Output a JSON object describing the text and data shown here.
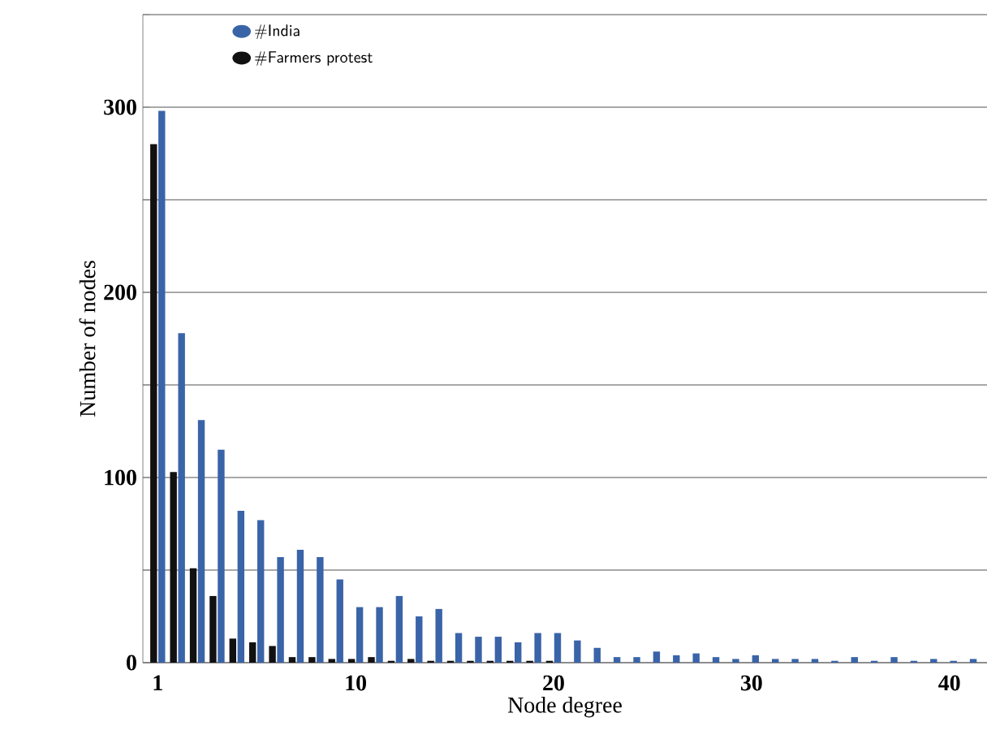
{
  "chart_data": {
    "type": "bar",
    "xlabel": "Node degree",
    "ylabel": "Number of nodes",
    "categories": [
      "1",
      null,
      null,
      null,
      null,
      null,
      null,
      null,
      null,
      null,
      "10",
      null,
      null,
      null,
      null,
      null,
      null,
      null,
      null,
      null,
      "20",
      null,
      null,
      null,
      null,
      null,
      null,
      null,
      null,
      null,
      "30",
      null,
      null,
      null,
      null,
      null,
      null,
      null,
      null,
      null,
      "40",
      null
    ],
    "series": [
      {
        "name": "#India",
        "color": "#3a64a8",
        "values": [
          298,
          178,
          131,
          115,
          82,
          77,
          57,
          61,
          57,
          45,
          30,
          30,
          36,
          25,
          29,
          16,
          14,
          14,
          11,
          16,
          16,
          12,
          8,
          3,
          3,
          6,
          4,
          5,
          3,
          2,
          4,
          2,
          2,
          2,
          1,
          3,
          1,
          3,
          1,
          2,
          1,
          2
        ]
      },
      {
        "name": "#Farmers protest",
        "color": "#111111",
        "values": [
          280,
          103,
          51,
          36,
          13,
          11,
          9,
          3,
          3,
          2,
          2,
          3,
          1,
          2,
          1,
          1,
          1,
          1,
          1,
          1,
          1,
          0,
          0,
          0,
          0,
          0,
          0,
          0,
          0,
          0,
          0,
          0,
          0,
          0,
          0,
          0,
          0,
          0,
          0,
          0,
          0,
          0
        ]
      }
    ],
    "ylim": [
      0,
      350
    ],
    "yticks": [
      0,
      {
        "value": 50,
        "label": null
      },
      100,
      {
        "value": 150,
        "label": null
      },
      200,
      {
        "value": 250,
        "label": null
      },
      300,
      {
        "value": 350,
        "label": null
      }
    ],
    "grid": "y",
    "legend": "top left"
  }
}
